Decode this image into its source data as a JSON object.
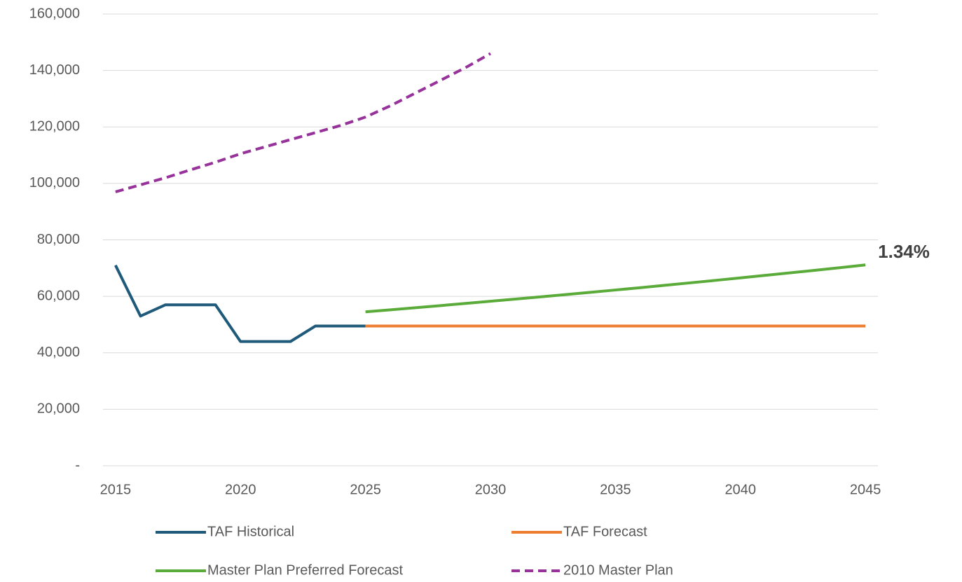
{
  "chart_data": {
    "type": "line",
    "x": [
      2015,
      2016,
      2017,
      2018,
      2019,
      2020,
      2021,
      2022,
      2023,
      2024,
      2025,
      2026,
      2027,
      2028,
      2029,
      2030,
      2031,
      2032,
      2033,
      2034,
      2035,
      2036,
      2037,
      2038,
      2039,
      2040,
      2041,
      2042,
      2043,
      2044,
      2045
    ],
    "series": [
      {
        "name": "TAF Historical",
        "color": "#1f5a7a",
        "dash": false,
        "values": [
          71000,
          53000,
          57000,
          57000,
          57000,
          44000,
          44000,
          44000,
          49500,
          49500,
          49500,
          null,
          null,
          null,
          null,
          null,
          null,
          null,
          null,
          null,
          null,
          null,
          null,
          null,
          null,
          null,
          null,
          null,
          null,
          null,
          null
        ]
      },
      {
        "name": "TAF Forecast",
        "color": "#ed7d31",
        "dash": false,
        "values": [
          null,
          null,
          null,
          null,
          null,
          null,
          null,
          null,
          null,
          null,
          49500,
          49500,
          49500,
          49500,
          49500,
          49500,
          49500,
          49500,
          49500,
          49500,
          49500,
          49500,
          49500,
          49500,
          49500,
          49500,
          49500,
          49500,
          49500,
          49500,
          49500
        ]
      },
      {
        "name": "Master Plan Preferred Forecast",
        "color": "#5aab3a",
        "dash": false,
        "values": [
          null,
          null,
          null,
          null,
          null,
          null,
          null,
          null,
          null,
          null,
          54500,
          55230,
          55970,
          56720,
          57480,
          58250,
          59030,
          59820,
          60620,
          61430,
          62250,
          63080,
          63930,
          64790,
          65660,
          66540,
          67430,
          68330,
          69250,
          70180,
          71120
        ]
      },
      {
        "name": "2010 Master Plan",
        "color": "#97329b",
        "dash": true,
        "values": [
          97000,
          99500,
          102000,
          104800,
          107500,
          110500,
          113000,
          115500,
          118000,
          120500,
          123500,
          127500,
          132000,
          136500,
          141000,
          146000,
          null,
          null,
          null,
          null,
          null,
          null,
          null,
          null,
          null,
          null,
          null,
          null,
          null,
          null,
          null
        ]
      }
    ],
    "annotations": [
      {
        "text": "1.34%",
        "x": 2045,
        "y": 71120,
        "color": "#404040"
      }
    ],
    "xlim": [
      2014.5,
      2045.5
    ],
    "xticks": [
      2015,
      2020,
      2025,
      2030,
      2035,
      2040,
      2045
    ],
    "ylim": [
      0,
      160000
    ],
    "yticks": [
      {
        "value": 0,
        "label": "-"
      },
      {
        "value": 20000,
        "label": "20,000"
      },
      {
        "value": 40000,
        "label": "40,000"
      },
      {
        "value": 60000,
        "label": "60,000"
      },
      {
        "value": 80000,
        "label": "80,000"
      },
      {
        "value": 100000,
        "label": "100,000"
      },
      {
        "value": 120000,
        "label": "120,000"
      },
      {
        "value": 140000,
        "label": "140,000"
      },
      {
        "value": 160000,
        "label": "160,000"
      }
    ],
    "grid": true
  }
}
